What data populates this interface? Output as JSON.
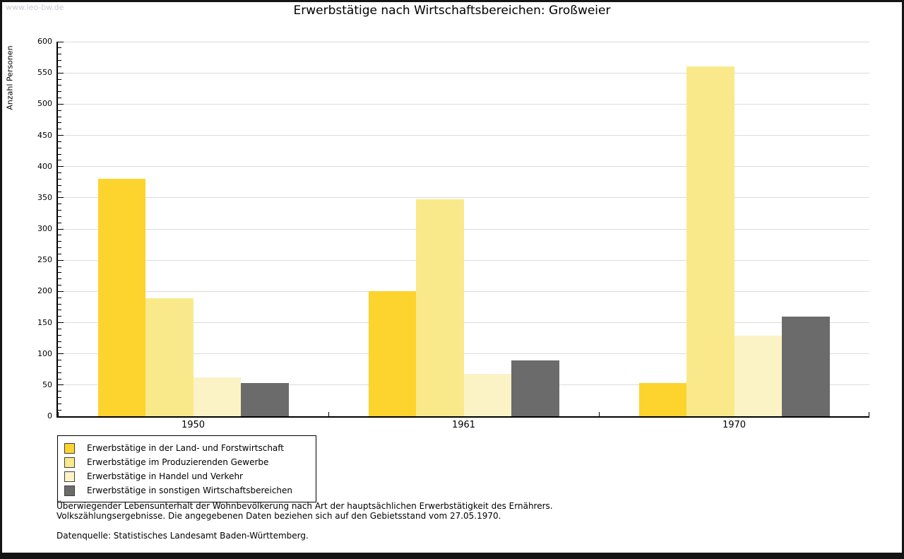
{
  "watermark": "www.leo-bw.de",
  "title": "Erwerbstätige nach Wirtschaftsbereichen: Großweier",
  "chart_data": {
    "type": "bar",
    "title": "Erwerbstätige nach Wirtschaftsbereichen: Großweier",
    "xlabel": "",
    "ylabel": "Anzahl Personen",
    "ylim": [
      0,
      600
    ],
    "ytick_step": 50,
    "ytick_minor_step": 10,
    "grid": "horizontal-major",
    "legend_position": "bottom-left",
    "categories": [
      "1950",
      "1961",
      "1970"
    ],
    "series": [
      {
        "name": "Erwerbstätige in der Land- und Forstwirtschaft",
        "color": "#FDD32D",
        "values": [
          380,
          200,
          53
        ]
      },
      {
        "name": "Erwerbstätige im Produzierenden Gewerbe",
        "color": "#FAE98B",
        "values": [
          189,
          347,
          560
        ]
      },
      {
        "name": "Erwerbstätige in Handel und Verkehr",
        "color": "#FBF3C6",
        "values": [
          62,
          68,
          129
        ]
      },
      {
        "name": "Erwerbstätige in sonstigen Wirtschaftsbereichen",
        "color": "#6B6B6B",
        "values": [
          53,
          90,
          160
        ]
      }
    ]
  },
  "colors": {
    "gridline": "#DCDCDC",
    "axis": "#000000",
    "watermark_text": "#C7CCD2"
  },
  "footnotes": {
    "line1": "Überwiegender Lebensunterhalt der Wohnbevölkerung nach Art der hauptsächlichen Erwerbstätigkeit des Ernährers.",
    "line2": "Volkszählungsergebnisse. Die angegebenen Daten beziehen sich auf den Gebietsstand vom 27.05.1970.",
    "source": "Datenquelle: Statistisches Landesamt Baden-Württemberg."
  }
}
